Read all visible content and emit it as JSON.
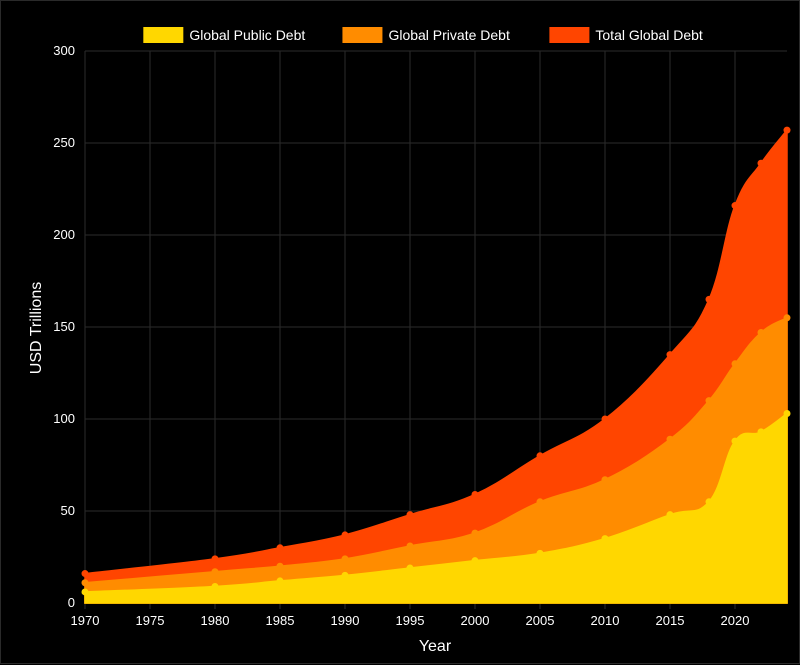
{
  "chart_data": {
    "type": "area",
    "stacked": true,
    "xlabel": "Year",
    "ylabel": "USD Trillions",
    "xlim": [
      1970,
      2024
    ],
    "ylim": [
      0,
      300
    ],
    "x_ticks": [
      1970,
      1975,
      1980,
      1985,
      1990,
      1995,
      2000,
      2005,
      2010,
      2015,
      2020
    ],
    "y_ticks": [
      0,
      50,
      100,
      150,
      200,
      250,
      300
    ],
    "grid": true,
    "legend_position": "top",
    "x": [
      1970,
      1980,
      1985,
      1990,
      1995,
      2000,
      2005,
      2010,
      2015,
      2018,
      2020,
      2022,
      2024
    ],
    "series": [
      {
        "name": "Global Public Debt",
        "color": "#FFD700",
        "values": [
          6,
          9,
          12,
          15,
          19,
          23,
          27,
          35,
          48,
          55,
          88,
          93,
          103
        ]
      },
      {
        "name": "Global Private Debt",
        "color": "#FF8C00",
        "values": [
          11,
          17,
          20,
          24,
          31,
          38,
          55,
          67,
          89,
          110,
          130,
          147,
          155
        ]
      },
      {
        "name": "Total Global Debt",
        "color": "#FF4500",
        "values": [
          16,
          24,
          30,
          37,
          48,
          59,
          80,
          100,
          135,
          165,
          216,
          239,
          257
        ]
      }
    ]
  }
}
